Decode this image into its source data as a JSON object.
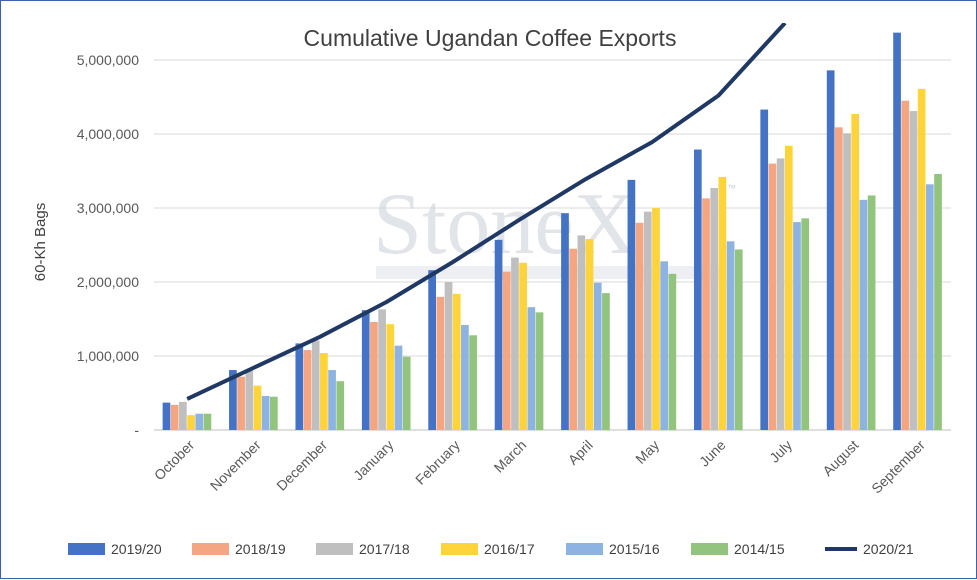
{
  "watermark": "StoneX",
  "watermark_mark": "™",
  "chart_data": {
    "type": "bar",
    "title": "Cumulative Ugandan Coffee Exports",
    "xlabel": "",
    "ylabel": "60-Kh Bags",
    "ylim": [
      0,
      5500000
    ],
    "yticks": [
      0,
      1000000,
      2000000,
      3000000,
      4000000,
      5000000
    ],
    "ytick_labels": [
      "-",
      "1,000,000",
      "2,000,000",
      "3,000,000",
      "4,000,000",
      "5,000,000"
    ],
    "grid": true,
    "legend_position": "bottom",
    "categories": [
      "October",
      "November",
      "December",
      "January",
      "February",
      "March",
      "April",
      "May",
      "June",
      "July",
      "August",
      "September"
    ],
    "series": [
      {
        "name": "2019/20",
        "color": "#4472c4",
        "type": "bar",
        "values": [
          370000,
          810000,
          1170000,
          1620000,
          2160000,
          2570000,
          2930000,
          3380000,
          3790000,
          4330000,
          4860000,
          5370000
        ]
      },
      {
        "name": "2018/19",
        "color": "#f4a582",
        "type": "bar",
        "values": [
          340000,
          720000,
          1080000,
          1460000,
          1800000,
          2140000,
          2450000,
          2800000,
          3130000,
          3600000,
          4090000,
          4450000
        ]
      },
      {
        "name": "2017/18",
        "color": "#bfbfbf",
        "type": "bar",
        "values": [
          380000,
          800000,
          1210000,
          1630000,
          2000000,
          2330000,
          2630000,
          2950000,
          3270000,
          3670000,
          4010000,
          4310000
        ]
      },
      {
        "name": "2016/17",
        "color": "#ffd43b",
        "type": "bar",
        "values": [
          200000,
          600000,
          1040000,
          1430000,
          1840000,
          2260000,
          2580000,
          3000000,
          3420000,
          3840000,
          4270000,
          4610000
        ]
      },
      {
        "name": "2015/16",
        "color": "#8db3e2",
        "type": "bar",
        "values": [
          220000,
          460000,
          810000,
          1140000,
          1420000,
          1660000,
          1990000,
          2280000,
          2550000,
          2810000,
          3110000,
          3320000
        ]
      },
      {
        "name": "2014/15",
        "color": "#93c47d",
        "type": "bar",
        "values": [
          220000,
          450000,
          660000,
          990000,
          1280000,
          1590000,
          1850000,
          2110000,
          2440000,
          2860000,
          3170000,
          3460000
        ]
      },
      {
        "name": "2020/21",
        "color": "#203864",
        "type": "line",
        "values": [
          420000,
          840000,
          1260000,
          1730000,
          2270000,
          2840000,
          3390000,
          3890000,
          4520000,
          5500000,
          null,
          null
        ]
      }
    ]
  }
}
